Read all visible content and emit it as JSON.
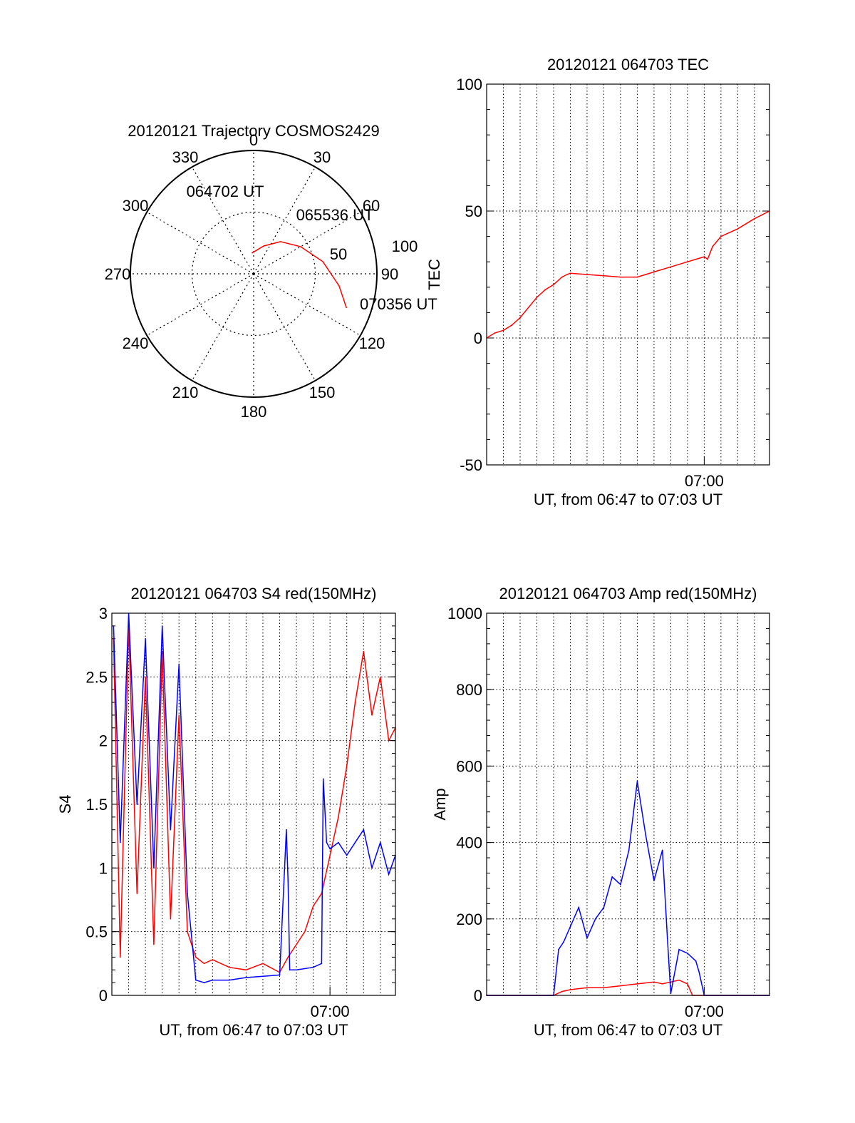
{
  "chart_data": [
    {
      "type": "polar",
      "title": "20120121 Trajectory COSMOS2429",
      "azimuth_labels": [
        "0",
        "30",
        "60",
        "90",
        "120",
        "150",
        "180",
        "210",
        "240",
        "270",
        "300",
        "330"
      ],
      "elevation_rings": [
        0,
        50
      ],
      "elevation_labels": [
        "50",
        "100"
      ],
      "trajectory": {
        "color": "#ff0000",
        "points": [
          {
            "az": 356,
            "el": 17
          },
          {
            "az": 20,
            "el": 24
          },
          {
            "az": 40,
            "el": 34
          },
          {
            "az": 60,
            "el": 44
          },
          {
            "az": 80,
            "el": 57
          },
          {
            "az": 98,
            "el": 70
          },
          {
            "az": 110,
            "el": 80
          }
        ],
        "time_labels": [
          {
            "text": "064702 UT",
            "az": 356,
            "el": 17
          },
          {
            "text": "065536 UT",
            "az": 45,
            "el": 38
          },
          {
            "text": "070356 UT",
            "az": 110,
            "el": 80
          }
        ]
      }
    },
    {
      "type": "line",
      "title": "20120121 064703 TEC",
      "xlabel": "UT, from 06:47 to 07:03 UT",
      "ylabel": "TEC",
      "xlim": [
        0,
        16.9
      ],
      "ylim": [
        -50,
        100
      ],
      "yticks": [
        "-50",
        "0",
        "50",
        "100"
      ],
      "xtick": {
        "label": "07:00",
        "x": 13.0
      },
      "series": [
        {
          "color": "#ff0000",
          "x": [
            0,
            0.5,
            1,
            1.5,
            2,
            2.5,
            3,
            3.5,
            4,
            4.5,
            4.8,
            5,
            6,
            7,
            8,
            9,
            9.5,
            10,
            11,
            12,
            13,
            13.2,
            13.5,
            14,
            15,
            16,
            16.9
          ],
          "y": [
            0,
            2,
            3,
            5,
            8,
            12,
            16,
            19,
            21,
            24,
            25,
            25.5,
            25,
            24.5,
            24,
            24,
            25,
            26,
            28,
            30,
            32,
            31,
            36,
            40,
            43,
            47,
            50
          ]
        }
      ]
    },
    {
      "type": "line",
      "title": "20120121 064703 S4 red(150MHz)",
      "xlabel": "UT, from 06:47 to 07:03 UT",
      "ylabel": "S4",
      "xlim": [
        0,
        16.9
      ],
      "ylim": [
        0,
        3
      ],
      "yticks": [
        "0",
        "0.5",
        "1",
        "1.5",
        "2",
        "2.5",
        "3"
      ],
      "xtick": {
        "label": "07:00",
        "x": 13.0
      },
      "series": [
        {
          "color": "#ff0000",
          "x": [
            0.1,
            0.5,
            1,
            1.5,
            2,
            2.5,
            3,
            3.5,
            4,
            4.5,
            5,
            5.5,
            6,
            7,
            8,
            9,
            10,
            10.5,
            11,
            11.5,
            12,
            12.5,
            13,
            13.5,
            14,
            14.5,
            15,
            15.5,
            16,
            16.5,
            16.9
          ],
          "y": [
            2.8,
            0.3,
            2.9,
            0.8,
            2.5,
            0.4,
            2.7,
            0.6,
            2.2,
            0.5,
            0.3,
            0.25,
            0.28,
            0.22,
            0.2,
            0.25,
            0.18,
            0.3,
            0.4,
            0.5,
            0.7,
            0.8,
            1.1,
            1.4,
            1.8,
            2.3,
            2.7,
            2.2,
            2.5,
            2.0,
            2.1
          ]
        },
        {
          "color": "#0000ff",
          "x": [
            0.1,
            0.5,
            1,
            1.5,
            2,
            2.5,
            3,
            3.5,
            4,
            4.5,
            5,
            5.5,
            6,
            7,
            8,
            9,
            10,
            10.4,
            10.5,
            10.6,
            11,
            12,
            12.5,
            12.6,
            12.8,
            13,
            13.5,
            14,
            14.5,
            15,
            15.5,
            16,
            16.5,
            16.9
          ],
          "y": [
            2.9,
            1.2,
            3.0,
            1.5,
            2.8,
            1.0,
            2.9,
            1.3,
            2.6,
            0.8,
            0.12,
            0.1,
            0.12,
            0.12,
            0.14,
            0.15,
            0.16,
            1.3,
            0.9,
            0.2,
            0.2,
            0.22,
            0.25,
            1.7,
            1.2,
            1.15,
            1.2,
            1.1,
            1.2,
            1.3,
            1.0,
            1.2,
            0.95,
            1.1
          ]
        }
      ]
    },
    {
      "type": "line",
      "title": "20120121 064703 Amp red(150MHz)",
      "xlabel": "UT, from 06:47 to 07:03 UT",
      "ylabel": "Amp",
      "xlim": [
        0,
        16.9
      ],
      "ylim": [
        0,
        1000
      ],
      "yticks": [
        "0",
        "200",
        "400",
        "600",
        "800",
        "1000"
      ],
      "xtick": {
        "label": "07:00",
        "x": 13.0
      },
      "series": [
        {
          "color": "#ff0000",
          "x": [
            0,
            4,
            4.5,
            5,
            6,
            7,
            8,
            9,
            10,
            10.5,
            11,
            11.5,
            12,
            12.3,
            13,
            16.9
          ],
          "y": [
            0,
            0,
            10,
            15,
            20,
            20,
            25,
            30,
            35,
            30,
            35,
            40,
            30,
            0,
            0,
            0
          ]
        },
        {
          "color": "#0000ff",
          "x": [
            0,
            4,
            4.3,
            4.6,
            5,
            5.5,
            6,
            6.5,
            7,
            7.5,
            8,
            8.5,
            9,
            9.5,
            10,
            10.5,
            10.8,
            11,
            11.5,
            12,
            12.5,
            12.7,
            13,
            16.9
          ],
          "y": [
            0,
            0,
            120,
            140,
            180,
            230,
            150,
            200,
            230,
            310,
            290,
            380,
            560,
            420,
            300,
            380,
            150,
            5,
            120,
            110,
            90,
            60,
            0,
            0
          ]
        }
      ]
    }
  ]
}
